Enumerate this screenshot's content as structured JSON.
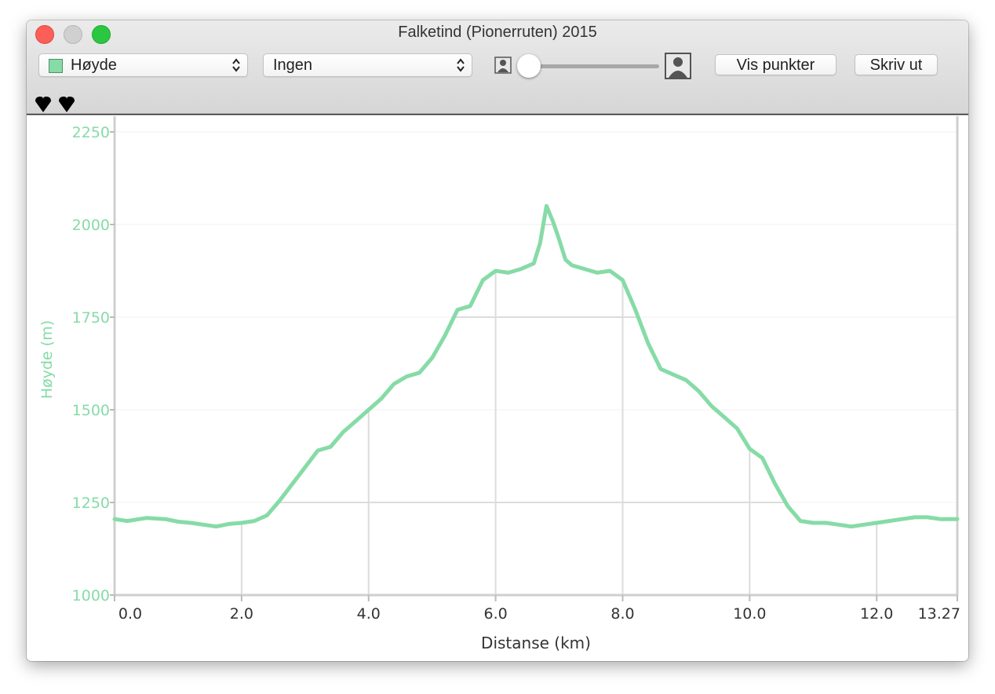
{
  "window": {
    "title": "Falketind (Pionerruten) 2015"
  },
  "toolbar": {
    "metric_popup": {
      "label": "Høyde",
      "swatch_color": "#86dba7"
    },
    "compare_popup": {
      "label": "Ingen"
    },
    "zoom_slider": {
      "value_fraction": 0.0,
      "min_icon": "small-person-icon",
      "max_icon": "large-person-icon"
    },
    "show_points_label": "Vis punkter",
    "print_label": "Skriv ut"
  },
  "markers": {
    "icon": "marker-pin-icon",
    "count": 2
  },
  "colors": {
    "line": "#86dba7",
    "axis_label": "#86dba7",
    "grid": "#dcdcdc"
  },
  "chart_data": {
    "type": "line",
    "xlabel": "Distanse (km)",
    "ylabel": "Høyde (m)",
    "xlim": [
      0,
      13.27
    ],
    "ylim": [
      1000,
      2250
    ],
    "x_ticks": [
      0,
      2,
      4,
      6,
      8,
      10,
      12,
      13.27
    ],
    "x_tick_labels": [
      "0.0",
      "2.0",
      "4.0",
      "6.0",
      "8.0",
      "10.0",
      "12.0",
      "13.27"
    ],
    "y_ticks": [
      1000,
      1250,
      1500,
      1750,
      2000,
      2250
    ],
    "y_tick_labels": [
      "1000",
      "1250",
      "1500",
      "1750",
      "2000",
      "2250"
    ],
    "grid": true,
    "series": [
      {
        "x": [
          0,
          0.2,
          0.5,
          0.8,
          1.0,
          1.2,
          1.4,
          1.6,
          1.8,
          2.0,
          2.2,
          2.4,
          2.6,
          2.8,
          3.0,
          3.2,
          3.4,
          3.6,
          3.8,
          4.0,
          4.2,
          4.4,
          4.6,
          4.8,
          5.0,
          5.2,
          5.4,
          5.6,
          5.8,
          6.0,
          6.2,
          6.4,
          6.6,
          6.7,
          6.8,
          6.9,
          7.0,
          7.1,
          7.2,
          7.4,
          7.6,
          7.8,
          8.0,
          8.2,
          8.4,
          8.6,
          8.8,
          9.0,
          9.2,
          9.4,
          9.6,
          9.8,
          10.0,
          10.2,
          10.4,
          10.6,
          10.8,
          11.0,
          11.2,
          11.4,
          11.6,
          11.8,
          12.0,
          12.2,
          12.4,
          12.6,
          12.8,
          13.0,
          13.27
        ],
        "y": [
          1205,
          1200,
          1208,
          1205,
          1198,
          1195,
          1190,
          1185,
          1192,
          1195,
          1200,
          1215,
          1255,
          1300,
          1345,
          1390,
          1400,
          1440,
          1470,
          1500,
          1530,
          1570,
          1590,
          1600,
          1640,
          1700,
          1770,
          1780,
          1850,
          1875,
          1870,
          1880,
          1895,
          1950,
          2050,
          2010,
          1960,
          1905,
          1890,
          1880,
          1870,
          1875,
          1850,
          1770,
          1680,
          1610,
          1595,
          1580,
          1550,
          1510,
          1480,
          1450,
          1395,
          1370,
          1300,
          1240,
          1200,
          1195,
          1195,
          1190,
          1185,
          1190,
          1195,
          1200,
          1205,
          1210,
          1210,
          1205,
          1205
        ]
      }
    ]
  }
}
